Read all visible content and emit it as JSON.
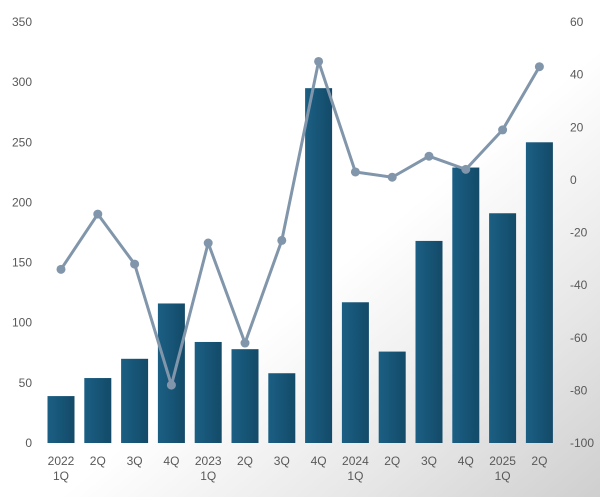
{
  "chart_data": {
    "type": "bar",
    "categories": [
      "2022\n1Q",
      "2Q",
      "3Q",
      "4Q",
      "2023\n1Q",
      "2Q",
      "3Q",
      "4Q",
      "2024\n1Q",
      "2Q",
      "3Q",
      "4Q",
      "2025\n1Q",
      "2Q"
    ],
    "series": [
      {
        "type": "bar",
        "axis": "left",
        "color": "#1a5a7d",
        "values": [
          39,
          54,
          70,
          116,
          84,
          78,
          58,
          295,
          117,
          76,
          168,
          229,
          191,
          250
        ]
      },
      {
        "type": "line",
        "axis": "right",
        "color": "#8196ab",
        "values": [
          -34,
          -13,
          -32,
          -78,
          -24,
          -62,
          -23,
          45,
          3,
          1,
          9,
          4,
          19,
          43
        ]
      }
    ],
    "left_axis": {
      "min": 0,
      "max": 350,
      "ticks": [
        "0",
        "50",
        "100",
        "150",
        "200",
        "250",
        "300",
        "350"
      ]
    },
    "right_axis": {
      "min": -100,
      "max": 60,
      "ticks": [
        "-100",
        "-80",
        "-60",
        "-40",
        "-20",
        "0",
        "20",
        "40",
        "60"
      ]
    },
    "grid": false,
    "legend": "none",
    "colors": {
      "bar": "#1a5a7d",
      "bar_dark": "#123f59",
      "line": "#8196ab",
      "tick_text": "#595959",
      "background_shade": "#d9d9d9"
    }
  }
}
